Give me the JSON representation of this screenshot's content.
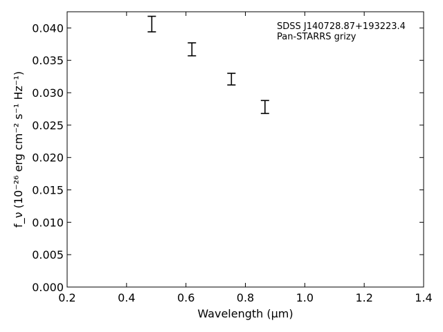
{
  "chart_data": {
    "type": "scatter",
    "title": "",
    "annotations": [
      "SDSS J140728.87+193223.4",
      "Pan-STARRS grizy"
    ],
    "xlabel": "Wavelength (μm)",
    "ylabel": "f_ν (10⁻²⁶ erg cm⁻² s⁻¹ Hz⁻¹)",
    "xlim": [
      0.2,
      1.4
    ],
    "ylim": [
      0.0,
      0.0425
    ],
    "xticks": [
      "0.2",
      "0.4",
      "0.6",
      "0.8",
      "1.0",
      "1.2",
      "1.4"
    ],
    "yticks": [
      "0.000",
      "0.005",
      "0.010",
      "0.015",
      "0.020",
      "0.025",
      "0.030",
      "0.035",
      "0.040"
    ],
    "grid": false,
    "series": [
      {
        "points": [
          {
            "x": 0.485,
            "y": 0.0406,
            "yerr": 0.0012
          },
          {
            "x": 0.62,
            "y": 0.0367,
            "yerr": 0.001
          },
          {
            "x": 0.753,
            "y": 0.0321,
            "yerr": 0.0009
          },
          {
            "x": 0.866,
            "y": 0.0278,
            "yerr": 0.001
          }
        ],
        "color": "#000000"
      }
    ]
  }
}
